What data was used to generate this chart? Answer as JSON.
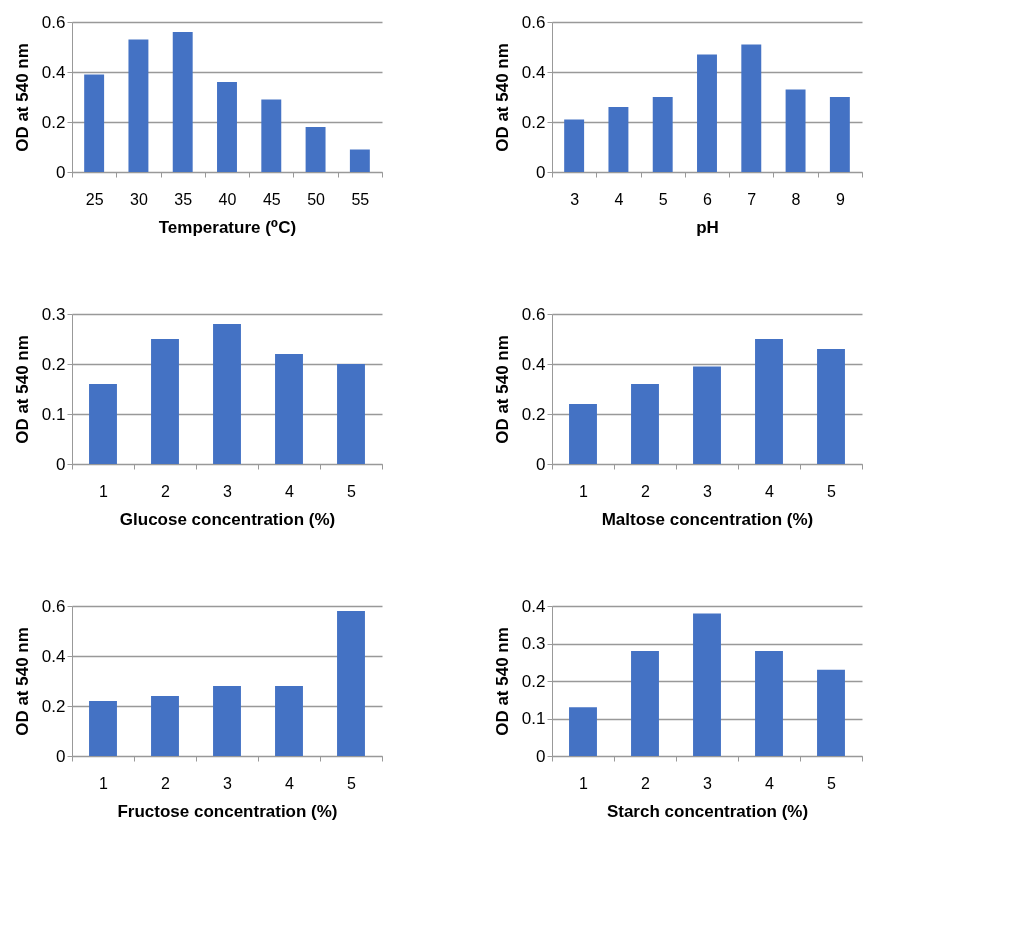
{
  "chart_data": [
    {
      "type": "bar",
      "xlabel": "Temperature (⁰C)",
      "ylabel": "OD at 540 nm",
      "categories": [
        "25",
        "30",
        "35",
        "40",
        "45",
        "50",
        "55"
      ],
      "values": [
        0.39,
        0.53,
        0.56,
        0.36,
        0.29,
        0.18,
        0.09
      ],
      "color": "#4472c4",
      "ylim": [
        0,
        0.6
      ],
      "yticks": [
        0,
        0.2,
        0.4,
        0.6
      ],
      "grid": "y"
    },
    {
      "type": "bar",
      "xlabel": "pH",
      "ylabel": "OD at 540 nm",
      "categories": [
        "3",
        "4",
        "5",
        "6",
        "7",
        "8",
        "9"
      ],
      "values": [
        0.21,
        0.26,
        0.3,
        0.47,
        0.51,
        0.33,
        0.3
      ],
      "color": "#4472c4",
      "ylim": [
        0,
        0.6
      ],
      "yticks": [
        0,
        0.2,
        0.4,
        0.6
      ],
      "grid": "y"
    },
    {
      "type": "bar",
      "xlabel": "Glucose concentration (%)",
      "ylabel": "OD at 540 nm",
      "categories": [
        "1",
        "2",
        "3",
        "4",
        "5"
      ],
      "values": [
        0.16,
        0.25,
        0.28,
        0.22,
        0.2
      ],
      "color": "#4472c4",
      "ylim": [
        0,
        0.3
      ],
      "yticks": [
        0,
        0.1,
        0.2,
        0.3
      ],
      "grid": "y"
    },
    {
      "type": "bar",
      "xlabel": "Maltose concentration (%)",
      "ylabel": "OD at 540 nm",
      "categories": [
        "1",
        "2",
        "3",
        "4",
        "5"
      ],
      "values": [
        0.24,
        0.32,
        0.39,
        0.5,
        0.46
      ],
      "color": "#4472c4",
      "ylim": [
        0,
        0.6
      ],
      "yticks": [
        0,
        0.2,
        0.4,
        0.6
      ],
      "grid": "y"
    },
    {
      "type": "bar",
      "xlabel": "Fructose concentration (%)",
      "ylabel": "OD at 540 nm",
      "categories": [
        "1",
        "2",
        "3",
        "4",
        "5"
      ],
      "values": [
        0.22,
        0.24,
        0.28,
        0.28,
        0.58
      ],
      "color": "#4472c4",
      "ylim": [
        0,
        0.6
      ],
      "yticks": [
        0,
        0.2,
        0.4,
        0.6
      ],
      "grid": "y"
    },
    {
      "type": "bar",
      "xlabel": "Starch concentration (%)",
      "ylabel": "OD at 540 nm",
      "categories": [
        "1",
        "2",
        "3",
        "4",
        "5"
      ],
      "values": [
        0.13,
        0.28,
        0.38,
        0.28,
        0.23
      ],
      "color": "#4472c4",
      "ylim": [
        0,
        0.4
      ],
      "yticks": [
        0,
        0.1,
        0.2,
        0.3,
        0.4
      ],
      "grid": "y"
    }
  ]
}
